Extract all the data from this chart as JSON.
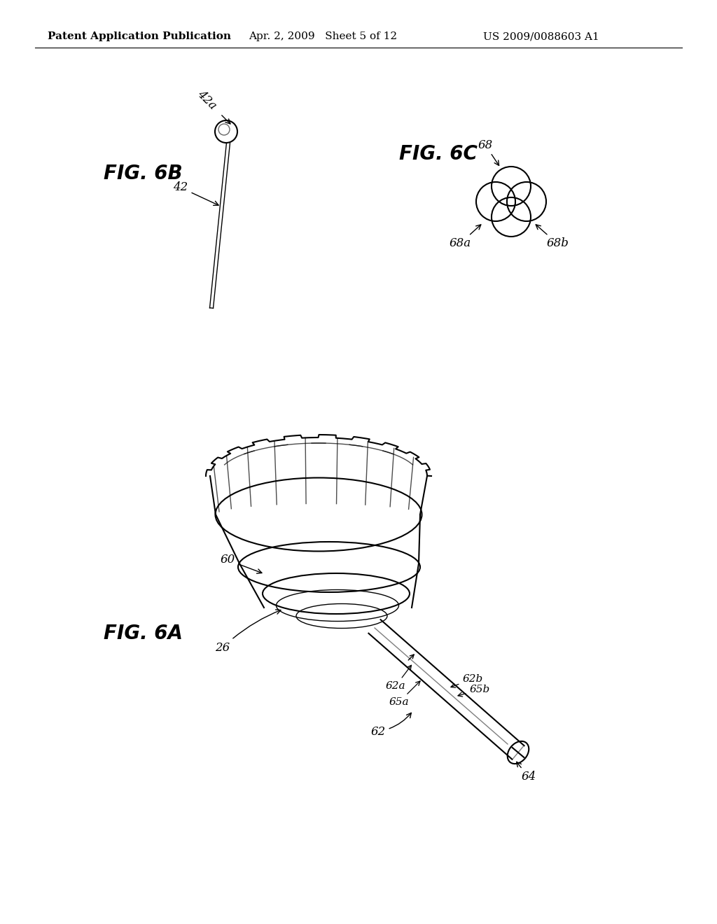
{
  "bg_color": "#ffffff",
  "line_color": "#000000",
  "header_text": "Patent Application Publication",
  "header_date": "Apr. 2, 2009   Sheet 5 of 12",
  "header_patent": "US 2009/0088603 A1",
  "fig6a_label": "FIG. 6A",
  "fig6b_label": "FIG. 6B",
  "fig6c_label": "FIG. 6C",
  "header_font_size": 11,
  "fig_label_font_size": 20,
  "anno_font_size": 12
}
